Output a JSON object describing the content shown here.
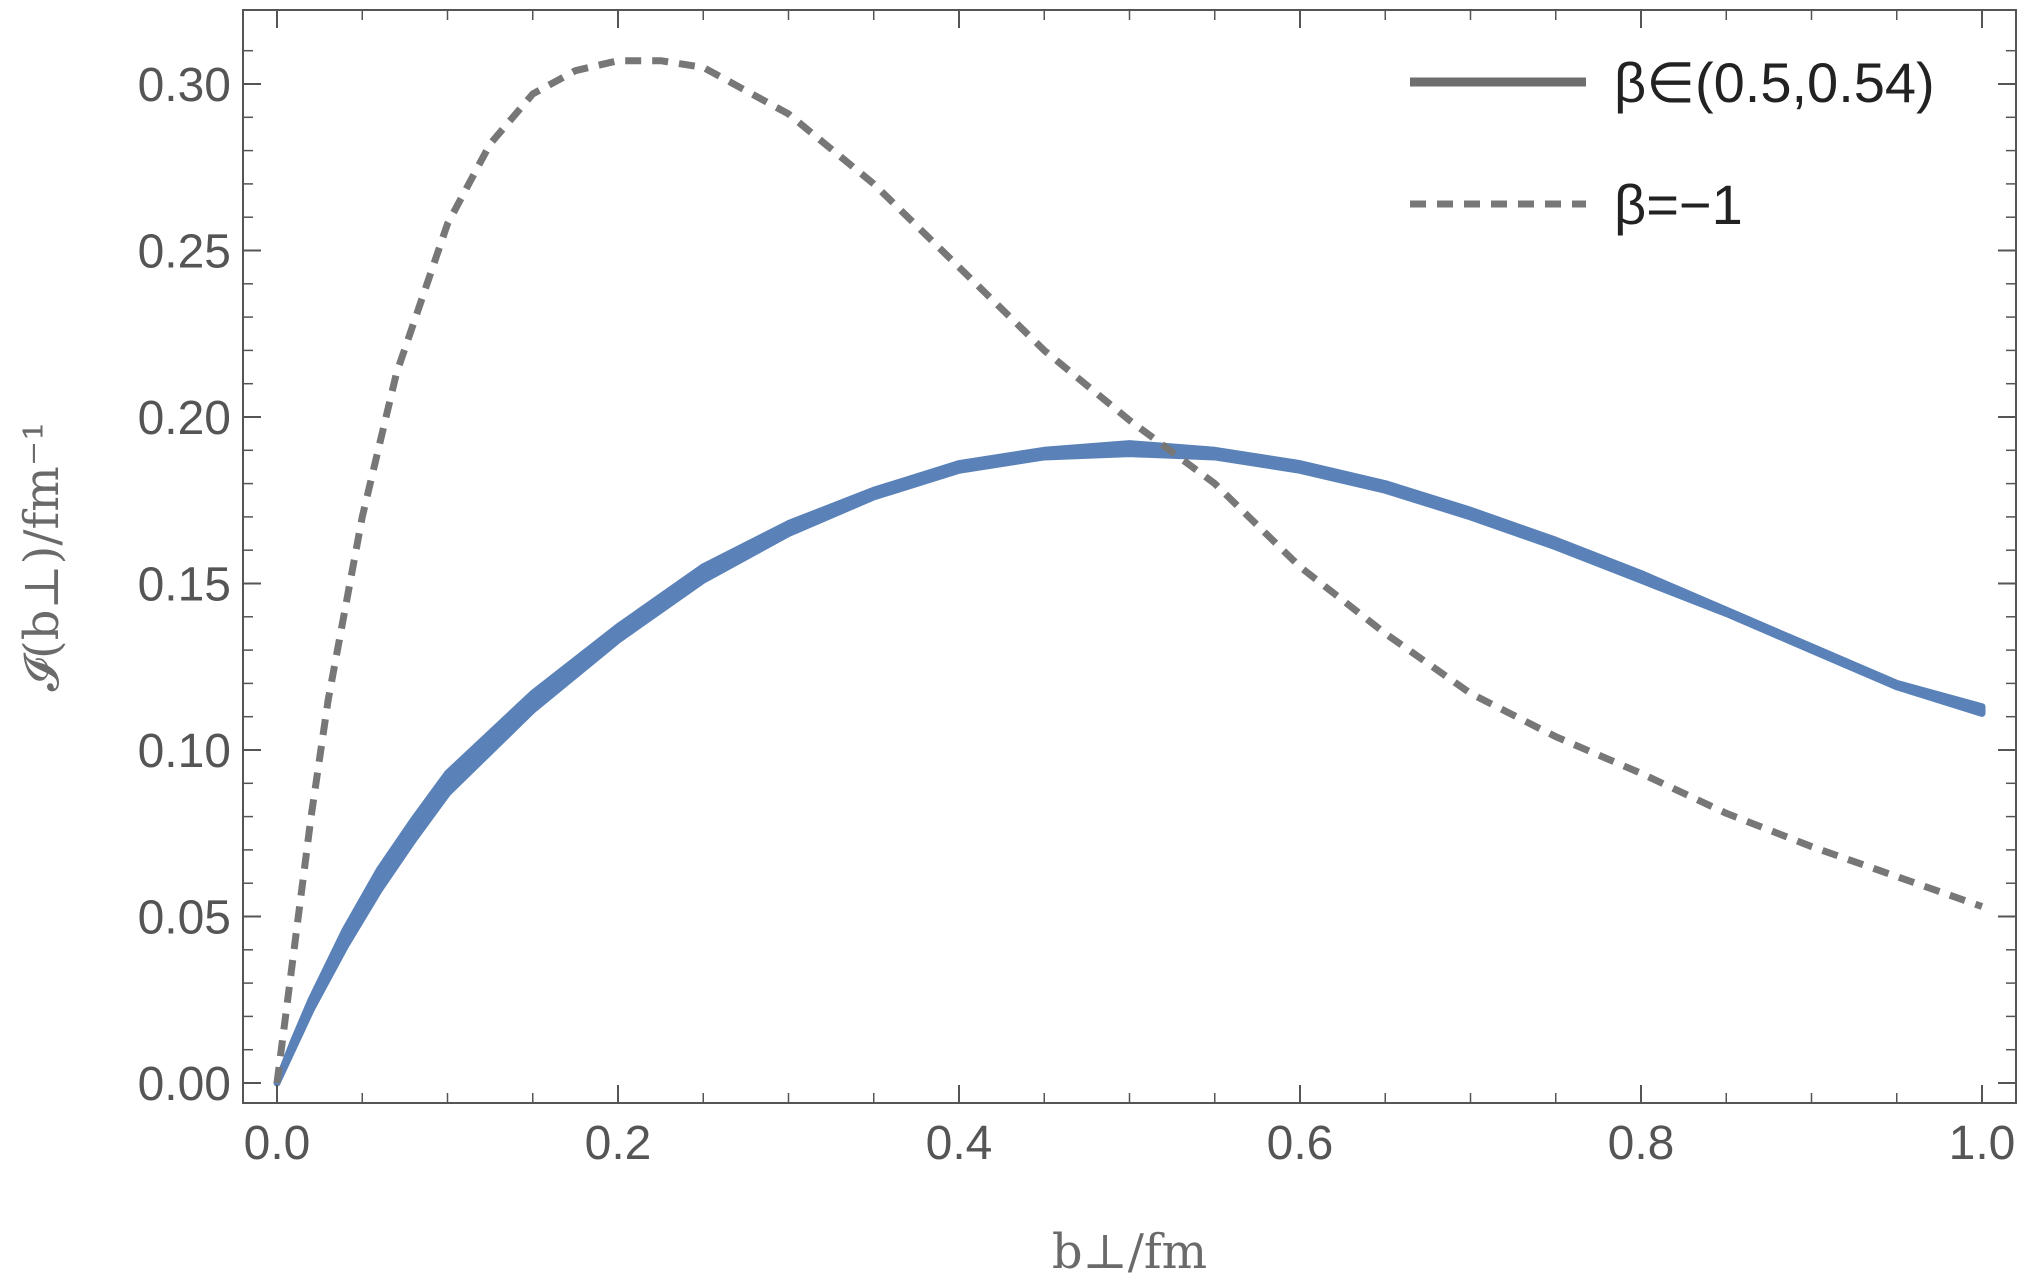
{
  "chart_data": {
    "type": "line",
    "xlabel": "b⊥/fm",
    "ylabel": "𝓘(b⊥)/fm⁻¹",
    "xlim": [
      0.0,
      1.0
    ],
    "ylim": [
      0.0,
      0.32
    ],
    "x_ticks": [
      "0.0",
      "0.2",
      "0.4",
      "0.6",
      "0.8",
      "1.0"
    ],
    "y_ticks": [
      "0.00",
      "0.05",
      "0.10",
      "0.15",
      "0.20",
      "0.25",
      "0.30"
    ],
    "grid": false,
    "legend_position": "top-right",
    "series": [
      {
        "name": "β∈(0.5,0.54)",
        "style": "band",
        "color": "#5a82b8",
        "legend_color": "#6e6e6e",
        "x": [
          0.0,
          0.01,
          0.02,
          0.04,
          0.06,
          0.08,
          0.1,
          0.15,
          0.2,
          0.25,
          0.3,
          0.35,
          0.4,
          0.45,
          0.5,
          0.55,
          0.6,
          0.65,
          0.7,
          0.75,
          0.8,
          0.85,
          0.9,
          0.95,
          1.0
        ],
        "upper": [
          0.0,
          0.013,
          0.025,
          0.046,
          0.064,
          0.079,
          0.093,
          0.117,
          0.137,
          0.155,
          0.168,
          0.178,
          0.186,
          0.19,
          0.192,
          0.19,
          0.186,
          0.18,
          0.172,
          0.163,
          0.153,
          0.142,
          0.131,
          0.12,
          0.113
        ],
        "lower": [
          0.0,
          0.011,
          0.022,
          0.041,
          0.058,
          0.073,
          0.087,
          0.112,
          0.133,
          0.151,
          0.165,
          0.176,
          0.184,
          0.188,
          0.189,
          0.188,
          0.184,
          0.178,
          0.17,
          0.161,
          0.151,
          0.141,
          0.13,
          0.119,
          0.111
        ]
      },
      {
        "name": "β=−1",
        "style": "dashed",
        "color": "#777777",
        "x": [
          0.0,
          0.01,
          0.02,
          0.03,
          0.05,
          0.07,
          0.1,
          0.125,
          0.15,
          0.175,
          0.2,
          0.225,
          0.25,
          0.3,
          0.35,
          0.4,
          0.45,
          0.5,
          0.55,
          0.6,
          0.65,
          0.7,
          0.75,
          0.8,
          0.85,
          0.9,
          0.95,
          1.0
        ],
        "values": [
          0.0,
          0.04,
          0.08,
          0.115,
          0.17,
          0.213,
          0.258,
          0.282,
          0.297,
          0.304,
          0.307,
          0.307,
          0.305,
          0.291,
          0.27,
          0.245,
          0.22,
          0.199,
          0.18,
          0.155,
          0.135,
          0.117,
          0.104,
          0.093,
          0.081,
          0.071,
          0.062,
          0.053
        ]
      }
    ]
  }
}
